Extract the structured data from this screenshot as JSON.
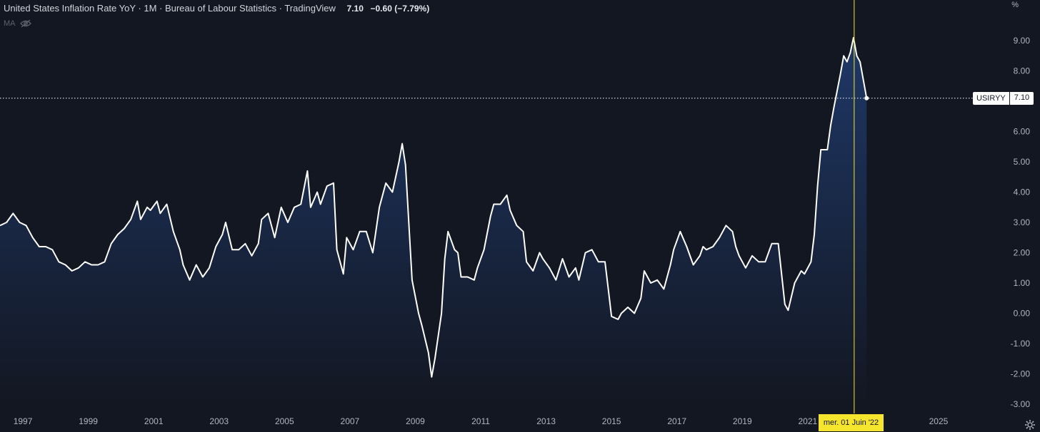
{
  "header": {
    "title": "United States Inflation Rate YoY · 1M · Bureau of Labour Statistics · TradingView",
    "last_value": "7.10",
    "change": "−0.60 (−7.79%)",
    "indicator": "MA"
  },
  "y_unit": "%",
  "price_tag": {
    "symbol": "USIRYY",
    "value": "7.10"
  },
  "crosshair": {
    "date_label": "mer. 01 Juin '22",
    "x": 2022.42
  },
  "icons": {
    "hidden": "eye-slash-icon",
    "settings": "gear-icon"
  },
  "colors": {
    "background": "#131722",
    "line": "#ffffff",
    "fill": "#1e3a6e",
    "crosshair": "#f5e52c"
  },
  "chart_data": {
    "type": "area",
    "ylim": [
      -3,
      9.8
    ],
    "xlim": [
      1996.3,
      2026.0
    ],
    "y_ticks": [
      "9.00",
      "8.00",
      "7.00",
      "6.00",
      "5.00",
      "4.00",
      "3.00",
      "2.00",
      "1.00",
      "0.00",
      "-1.00",
      "-2.00",
      "-3.00"
    ],
    "y_tick_values": [
      9,
      8,
      7,
      6,
      5,
      4,
      3,
      2,
      1,
      0,
      -1,
      -2,
      -3
    ],
    "x_ticks": [
      "1997",
      "1999",
      "2001",
      "2003",
      "2005",
      "2007",
      "2009",
      "2011",
      "2013",
      "2015",
      "2017",
      "2019",
      "2021",
      "2025"
    ],
    "x_tick_values": [
      1997,
      1999,
      2001,
      2003,
      2005,
      2007,
      2009,
      2011,
      2013,
      2015,
      2017,
      2019,
      2021,
      2025
    ],
    "grid": false,
    "series": [
      {
        "name": "USIRYY",
        "points": [
          [
            1996.3,
            2.9
          ],
          [
            1996.5,
            3.0
          ],
          [
            1996.7,
            3.3
          ],
          [
            1996.9,
            3.0
          ],
          [
            1997.1,
            2.9
          ],
          [
            1997.3,
            2.5
          ],
          [
            1997.5,
            2.2
          ],
          [
            1997.7,
            2.2
          ],
          [
            1997.9,
            2.1
          ],
          [
            1998.1,
            1.7
          ],
          [
            1998.3,
            1.6
          ],
          [
            1998.5,
            1.4
          ],
          [
            1998.7,
            1.5
          ],
          [
            1998.9,
            1.7
          ],
          [
            1999.1,
            1.6
          ],
          [
            1999.3,
            1.6
          ],
          [
            1999.5,
            1.7
          ],
          [
            1999.7,
            2.3
          ],
          [
            1999.9,
            2.6
          ],
          [
            2000.1,
            2.8
          ],
          [
            2000.3,
            3.1
          ],
          [
            2000.5,
            3.7
          ],
          [
            2000.6,
            3.1
          ],
          [
            2000.8,
            3.5
          ],
          [
            2000.9,
            3.4
          ],
          [
            2001.1,
            3.7
          ],
          [
            2001.2,
            3.3
          ],
          [
            2001.4,
            3.6
          ],
          [
            2001.6,
            2.7
          ],
          [
            2001.8,
            2.1
          ],
          [
            2001.9,
            1.6
          ],
          [
            2002.1,
            1.1
          ],
          [
            2002.3,
            1.6
          ],
          [
            2002.5,
            1.2
          ],
          [
            2002.7,
            1.5
          ],
          [
            2002.9,
            2.2
          ],
          [
            2003.1,
            2.6
          ],
          [
            2003.2,
            3.0
          ],
          [
            2003.4,
            2.1
          ],
          [
            2003.6,
            2.1
          ],
          [
            2003.8,
            2.3
          ],
          [
            2004.0,
            1.9
          ],
          [
            2004.2,
            2.3
          ],
          [
            2004.3,
            3.1
          ],
          [
            2004.5,
            3.3
          ],
          [
            2004.7,
            2.5
          ],
          [
            2004.9,
            3.5
          ],
          [
            2005.1,
            3.0
          ],
          [
            2005.3,
            3.5
          ],
          [
            2005.5,
            3.6
          ],
          [
            2005.7,
            4.7
          ],
          [
            2005.8,
            3.5
          ],
          [
            2006.0,
            4.0
          ],
          [
            2006.1,
            3.6
          ],
          [
            2006.3,
            4.2
          ],
          [
            2006.5,
            4.3
          ],
          [
            2006.6,
            2.1
          ],
          [
            2006.8,
            1.3
          ],
          [
            2006.9,
            2.5
          ],
          [
            2007.1,
            2.1
          ],
          [
            2007.3,
            2.7
          ],
          [
            2007.5,
            2.7
          ],
          [
            2007.7,
            2.0
          ],
          [
            2007.9,
            3.5
          ],
          [
            2008.1,
            4.3
          ],
          [
            2008.3,
            4.0
          ],
          [
            2008.5,
            5.0
          ],
          [
            2008.6,
            5.6
          ],
          [
            2008.7,
            4.9
          ],
          [
            2008.9,
            1.1
          ],
          [
            2009.1,
            0.0
          ],
          [
            2009.2,
            -0.4
          ],
          [
            2009.4,
            -1.3
          ],
          [
            2009.5,
            -2.1
          ],
          [
            2009.6,
            -1.5
          ],
          [
            2009.8,
            0.0
          ],
          [
            2009.9,
            1.8
          ],
          [
            2010.0,
            2.7
          ],
          [
            2010.2,
            2.1
          ],
          [
            2010.3,
            2.0
          ],
          [
            2010.4,
            1.2
          ],
          [
            2010.6,
            1.2
          ],
          [
            2010.8,
            1.1
          ],
          [
            2010.9,
            1.5
          ],
          [
            2011.1,
            2.1
          ],
          [
            2011.3,
            3.2
          ],
          [
            2011.4,
            3.6
          ],
          [
            2011.6,
            3.6
          ],
          [
            2011.8,
            3.9
          ],
          [
            2011.9,
            3.4
          ],
          [
            2012.1,
            2.9
          ],
          [
            2012.3,
            2.7
          ],
          [
            2012.4,
            1.7
          ],
          [
            2012.6,
            1.4
          ],
          [
            2012.8,
            2.0
          ],
          [
            2012.9,
            1.8
          ],
          [
            2013.1,
            1.5
          ],
          [
            2013.3,
            1.1
          ],
          [
            2013.5,
            1.8
          ],
          [
            2013.7,
            1.2
          ],
          [
            2013.9,
            1.5
          ],
          [
            2014.0,
            1.1
          ],
          [
            2014.2,
            2.0
          ],
          [
            2014.4,
            2.1
          ],
          [
            2014.6,
            1.7
          ],
          [
            2014.8,
            1.7
          ],
          [
            2014.9,
            0.8
          ],
          [
            2015.0,
            -0.1
          ],
          [
            2015.2,
            -0.2
          ],
          [
            2015.3,
            0.0
          ],
          [
            2015.5,
            0.2
          ],
          [
            2015.7,
            0.0
          ],
          [
            2015.9,
            0.5
          ],
          [
            2016.0,
            1.4
          ],
          [
            2016.2,
            1.0
          ],
          [
            2016.4,
            1.1
          ],
          [
            2016.6,
            0.8
          ],
          [
            2016.8,
            1.6
          ],
          [
            2016.9,
            2.1
          ],
          [
            2017.1,
            2.7
          ],
          [
            2017.3,
            2.2
          ],
          [
            2017.5,
            1.6
          ],
          [
            2017.7,
            1.9
          ],
          [
            2017.8,
            2.2
          ],
          [
            2017.9,
            2.1
          ],
          [
            2018.1,
            2.2
          ],
          [
            2018.3,
            2.5
          ],
          [
            2018.5,
            2.9
          ],
          [
            2018.7,
            2.7
          ],
          [
            2018.8,
            2.2
          ],
          [
            2018.9,
            1.9
          ],
          [
            2019.1,
            1.5
          ],
          [
            2019.3,
            1.9
          ],
          [
            2019.5,
            1.7
          ],
          [
            2019.7,
            1.7
          ],
          [
            2019.9,
            2.3
          ],
          [
            2020.1,
            2.3
          ],
          [
            2020.3,
            0.3
          ],
          [
            2020.4,
            0.1
          ],
          [
            2020.6,
            1.0
          ],
          [
            2020.8,
            1.4
          ],
          [
            2020.9,
            1.3
          ],
          [
            2021.1,
            1.7
          ],
          [
            2021.2,
            2.6
          ],
          [
            2021.3,
            4.2
          ],
          [
            2021.4,
            5.4
          ],
          [
            2021.6,
            5.4
          ],
          [
            2021.7,
            6.2
          ],
          [
            2021.8,
            6.8
          ],
          [
            2022.0,
            7.9
          ],
          [
            2022.1,
            8.5
          ],
          [
            2022.2,
            8.3
          ],
          [
            2022.3,
            8.6
          ],
          [
            2022.4,
            9.1
          ],
          [
            2022.5,
            8.5
          ],
          [
            2022.6,
            8.3
          ],
          [
            2022.7,
            7.7
          ],
          [
            2022.8,
            7.1
          ]
        ]
      }
    ]
  }
}
